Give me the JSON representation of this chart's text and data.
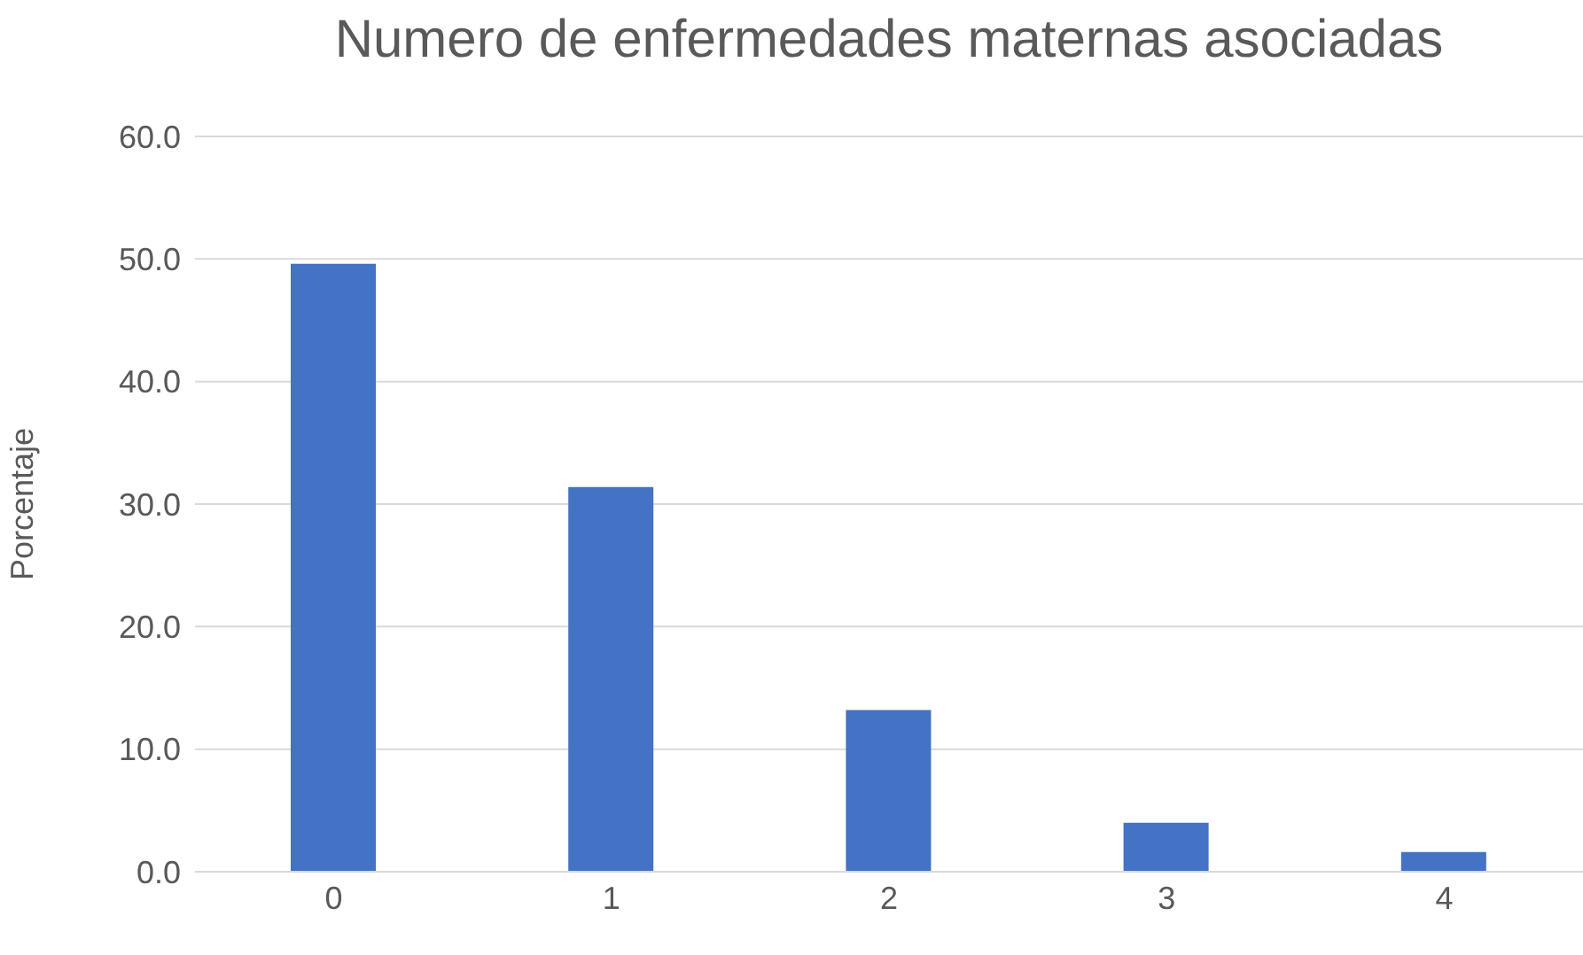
{
  "chart_data": {
    "type": "bar",
    "title": "Numero de enfermedades maternas asociadas",
    "ylabel": "Porcentaje",
    "categories": [
      "0",
      "1",
      "2",
      "3",
      "4"
    ],
    "values": [
      49.6,
      31.4,
      13.2,
      4.0,
      1.6
    ],
    "color": "#4472c4",
    "ylim": [
      0,
      60
    ],
    "yticks": [
      {
        "value": 0,
        "label": "0.0"
      },
      {
        "value": 10,
        "label": "10.0"
      },
      {
        "value": 20,
        "label": "20.0"
      },
      {
        "value": 30,
        "label": "30.0"
      },
      {
        "value": 40,
        "label": "40.0"
      },
      {
        "value": 50,
        "label": "50.0"
      },
      {
        "value": 60,
        "label": "60.0"
      }
    ],
    "grid": "y"
  }
}
